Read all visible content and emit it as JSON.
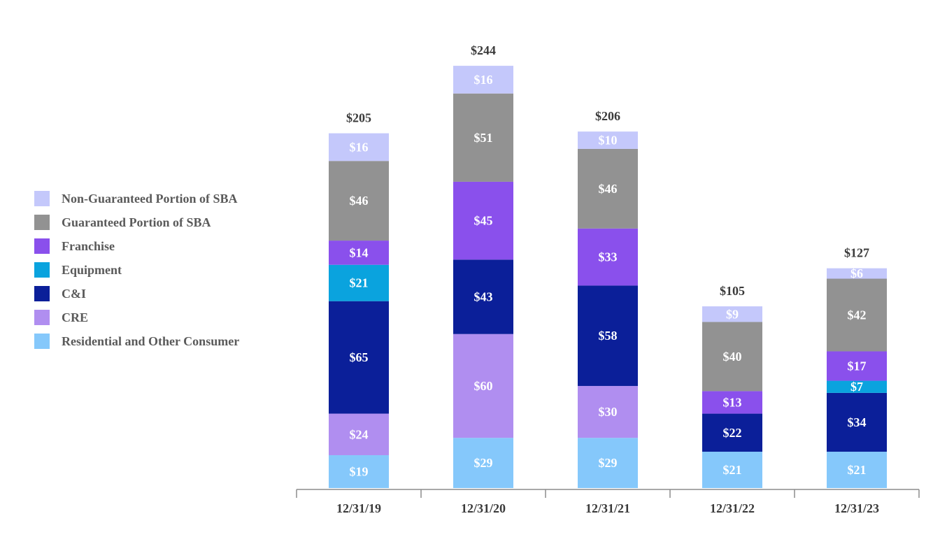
{
  "chart_data": {
    "type": "bar",
    "stacked": true,
    "title": "",
    "xlabel": "",
    "ylabel": "",
    "ylim": [
      0,
      244
    ],
    "grid": false,
    "legend_position": "left",
    "value_prefix": "$",
    "categories": [
      "12/31/19",
      "12/31/20",
      "12/31/21",
      "12/31/22",
      "12/31/23"
    ],
    "totals": [
      205,
      244,
      206,
      105,
      127
    ],
    "total_labels": [
      "$205",
      "$244",
      "$206",
      "$105",
      "$127"
    ],
    "series": [
      {
        "name": "Residential and Other Consumer",
        "color": "#85c8fb",
        "values": [
          19,
          29,
          29,
          21,
          21
        ],
        "labels": [
          "$19",
          "$29",
          "$29",
          "$21",
          "$21"
        ]
      },
      {
        "name": "CRE",
        "color": "#b08ef0",
        "values": [
          24,
          60,
          30,
          0,
          0
        ],
        "labels": [
          "$24",
          "$60",
          "$30",
          "",
          ""
        ]
      },
      {
        "name": "C&I",
        "color": "#0b1f99",
        "values": [
          65,
          43,
          58,
          22,
          34
        ],
        "labels": [
          "$65",
          "$43",
          "$58",
          "$22",
          "$34"
        ]
      },
      {
        "name": "Equipment",
        "color": "#0aa3de",
        "values": [
          21,
          0,
          0,
          0,
          7
        ],
        "labels": [
          "$21",
          "",
          "",
          "",
          "$7"
        ]
      },
      {
        "name": "Franchise",
        "color": "#8a50ec",
        "values": [
          14,
          45,
          33,
          13,
          17
        ],
        "labels": [
          "$14",
          "$45",
          "$33",
          "$13",
          "$17"
        ]
      },
      {
        "name": "Guaranteed Portion of SBA",
        "color": "#929292",
        "values": [
          46,
          51,
          46,
          40,
          42
        ],
        "labels": [
          "$46",
          "$51",
          "$46",
          "$40",
          "$42"
        ]
      },
      {
        "name": "Non-Guaranteed Portion of SBA",
        "color": "#c4c8fb",
        "values": [
          16,
          16,
          10,
          9,
          6
        ],
        "labels": [
          "$16",
          "$16",
          "$10",
          "$9",
          "$6"
        ]
      }
    ],
    "legend_order": [
      "Non-Guaranteed Portion of SBA",
      "Guaranteed Portion of SBA",
      "Franchise",
      "Equipment",
      "C&I",
      "CRE",
      "Residential and Other Consumer"
    ]
  }
}
